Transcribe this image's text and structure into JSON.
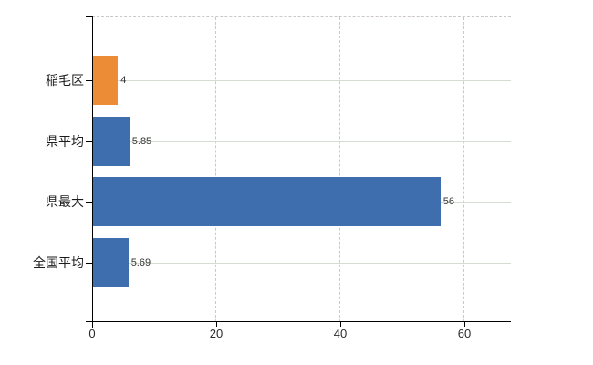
{
  "chart_data": {
    "type": "bar",
    "orientation": "horizontal",
    "categories": [
      "稲毛区",
      "県平均",
      "県最大",
      "全国平均"
    ],
    "values": [
      4,
      5.85,
      56,
      5.69
    ],
    "value_labels": [
      "4",
      "5.85",
      "56",
      "5.69"
    ],
    "bar_colors": [
      "#EC8C36",
      "#3F6EAE",
      "#3F6EAE",
      "#3F6EAE"
    ],
    "xlim": [
      0,
      67.5
    ],
    "xticks": [
      0,
      20,
      40,
      60
    ],
    "xtick_labels": [
      "0",
      "20",
      "40",
      "60"
    ],
    "grid": true,
    "legend": false,
    "gridline_horizontal_style": "solid",
    "gridline_vertical_style": "dashed",
    "plot_border_top_style": "dashed"
  },
  "colors": {
    "background": "#ffffff",
    "axis": "#000000",
    "grid_horizontal": "#d5ddd3",
    "grid_vertical": "#cdc7cd",
    "plot_border_top": "#cdc7cd",
    "highlight_bar": "#EC8C36",
    "default_bar": "#3F6EAE",
    "category_text": "#1c1c1c",
    "tick_text": "#2a2a2a",
    "value_text": "#333333"
  }
}
